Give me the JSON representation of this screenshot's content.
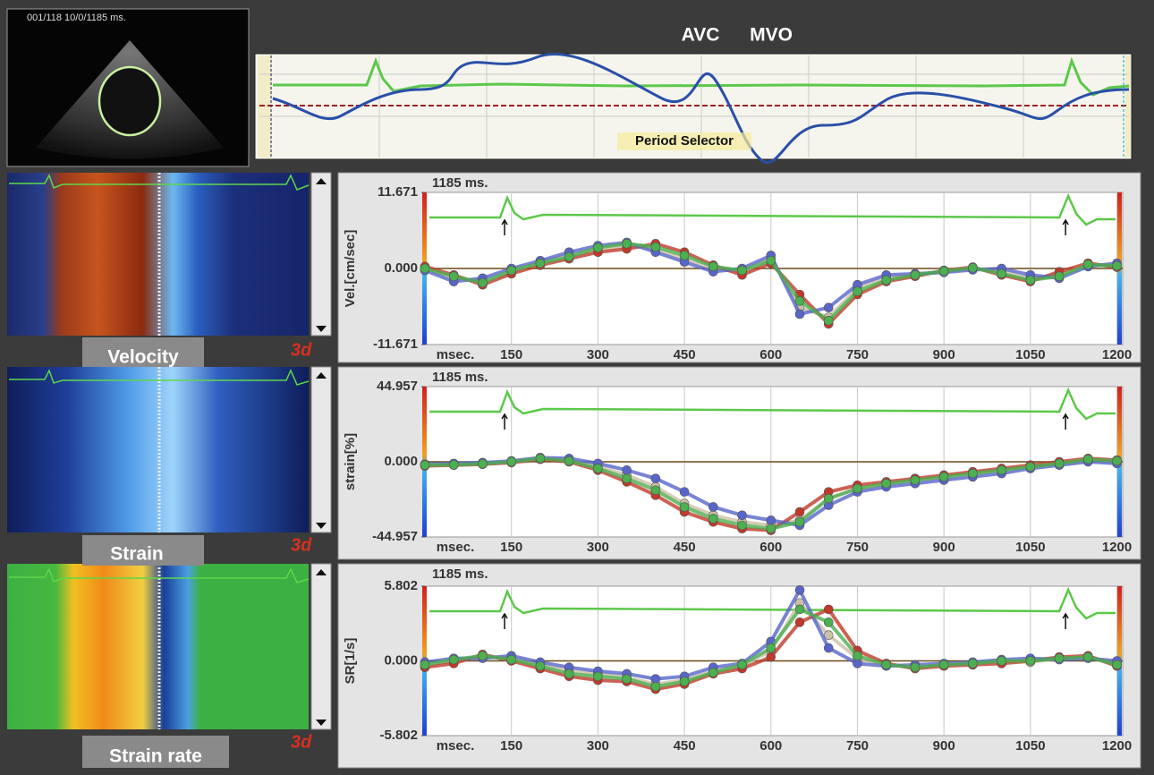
{
  "header": {
    "image_caption": "001/118  10/0/1185 ms.",
    "markers": [
      "AVC",
      "MVO"
    ],
    "selector_label": "Period Selector"
  },
  "brand": "3d",
  "chart_data": [
    {
      "type": "line",
      "label": "Velocity",
      "ylabel": "Vel.[cm/sec]",
      "time_label": "1185 ms.",
      "xlabel": "msec.",
      "x": [
        0,
        50,
        100,
        150,
        200,
        250,
        300,
        350,
        400,
        450,
        500,
        550,
        600,
        650,
        700,
        750,
        800,
        850,
        900,
        950,
        1000,
        1050,
        1100,
        1150,
        1200
      ],
      "xlim": [
        0,
        1210
      ],
      "xticks": [
        150,
        300,
        450,
        600,
        750,
        900,
        1050,
        1200
      ],
      "ylim": [
        -11.671,
        11.671
      ],
      "yticks": [
        -11.671,
        {
          "value": 0,
          "label": "0.000"
        },
        11.671
      ],
      "series": [
        {
          "color": "#c9c1a6",
          "values": [
            0,
            -1.5,
            -2,
            -0.5,
            1,
            2,
            3,
            3.5,
            3,
            1.5,
            0,
            -0.5,
            1.5,
            -6,
            -7.5,
            -3,
            -1.5,
            -1,
            -0.5,
            0,
            -0.5,
            -1.5,
            -1,
            0.5,
            0.5
          ]
        },
        {
          "color": "#c0392b",
          "values": [
            0.3,
            -1,
            -2.5,
            -0.8,
            0.5,
            1.5,
            2.5,
            3,
            3.8,
            2.5,
            0.5,
            -1,
            0.8,
            -4,
            -8.5,
            -4,
            -2,
            -1.2,
            -0.3,
            0.2,
            -1,
            -2,
            -0.5,
            0.8,
            0.2
          ]
        },
        {
          "color": "#5865c9",
          "values": [
            -0.3,
            -2,
            -1.5,
            0,
            1.2,
            2.5,
            3.5,
            4,
            2.5,
            1,
            -0.5,
            0,
            2,
            -7,
            -6,
            -2.5,
            -1,
            -0.8,
            -0.6,
            -0.2,
            0,
            -1,
            -1.5,
            0.3,
            0.8
          ]
        },
        {
          "color": "#4caf50",
          "values": [
            0,
            -1.2,
            -2.2,
            -0.3,
            0.8,
            1.8,
            3.2,
            3.8,
            3.3,
            2,
            0.3,
            -0.3,
            1.2,
            -5,
            -8,
            -3.5,
            -1.8,
            -1,
            -0.4,
            0.1,
            -0.8,
            -1.8,
            -1.2,
            0.6,
            0.4
          ]
        }
      ]
    },
    {
      "type": "line",
      "label": "Strain",
      "ylabel": "strain[%]",
      "time_label": "1185 ms.",
      "xlabel": "msec.",
      "x": [
        0,
        50,
        100,
        150,
        200,
        250,
        300,
        350,
        400,
        450,
        500,
        550,
        600,
        650,
        700,
        750,
        800,
        850,
        900,
        950,
        1000,
        1050,
        1100,
        1150,
        1200
      ],
      "xlim": [
        0,
        1210
      ],
      "xticks": [
        150,
        300,
        450,
        600,
        750,
        900,
        1050,
        1200
      ],
      "ylim": [
        -44.957,
        44.957
      ],
      "yticks": [
        -44.957,
        {
          "value": 0,
          "label": "0.000"
        },
        44.957
      ],
      "series": [
        {
          "color": "#c9c1a6",
          "values": [
            -2,
            -1.5,
            -1,
            0,
            2,
            1,
            -3,
            -8,
            -15,
            -25,
            -32,
            -36,
            -38,
            -35,
            -22,
            -16,
            -13,
            -11,
            -9,
            -7,
            -5,
            -3,
            -1,
            1,
            0
          ]
        },
        {
          "color": "#c0392b",
          "values": [
            -2.5,
            -2,
            -1.5,
            -0.5,
            1.5,
            0,
            -5,
            -12,
            -20,
            -30,
            -36,
            -40,
            -41,
            -30,
            -18,
            -14,
            -12,
            -10,
            -8,
            -6,
            -4,
            -2,
            0,
            2,
            1
          ]
        },
        {
          "color": "#5865c9",
          "values": [
            -1.5,
            -1,
            -0.5,
            0.5,
            2.5,
            2,
            -1,
            -5,
            -10,
            -18,
            -27,
            -32,
            -35,
            -38,
            -26,
            -18,
            -15,
            -13,
            -11,
            -9,
            -7,
            -4,
            -2,
            0,
            -1
          ]
        },
        {
          "color": "#4caf50",
          "values": [
            -2,
            -1.8,
            -1.2,
            0,
            2,
            0.5,
            -4,
            -10,
            -17,
            -27,
            -34,
            -38,
            -40,
            -36,
            -22,
            -16,
            -13,
            -11,
            -9,
            -7,
            -5,
            -3,
            -1,
            1.5,
            0.5
          ]
        }
      ]
    },
    {
      "type": "line",
      "label": "Strain rate",
      "ylabel": "SR[1/s]",
      "time_label": "1185 ms.",
      "xlabel": "msec.",
      "x": [
        0,
        50,
        100,
        150,
        200,
        250,
        300,
        350,
        400,
        450,
        500,
        550,
        600,
        650,
        700,
        750,
        800,
        850,
        900,
        950,
        1000,
        1050,
        1100,
        1150,
        1200
      ],
      "xlim": [
        0,
        1210
      ],
      "xticks": [
        150,
        300,
        450,
        600,
        750,
        900,
        1050,
        1200
      ],
      "ylim": [
        -5.802,
        5.802
      ],
      "yticks": [
        -5.802,
        {
          "value": 0,
          "label": "0.000"
        },
        5.802
      ],
      "series": [
        {
          "color": "#c9c1a6",
          "values": [
            -0.3,
            0,
            0.3,
            0.2,
            -0.3,
            -0.8,
            -1,
            -1.3,
            -1.8,
            -1.5,
            -0.8,
            -0.4,
            0.8,
            4.5,
            2,
            0.2,
            -0.3,
            -0.5,
            -0.3,
            -0.2,
            0,
            -0.1,
            0.2,
            0.3,
            -0.2
          ]
        },
        {
          "color": "#c0392b",
          "values": [
            -0.5,
            -0.2,
            0.5,
            0,
            -0.6,
            -1.2,
            -1.5,
            -1.6,
            -2.2,
            -1.8,
            -1,
            -0.6,
            0.3,
            3,
            4,
            0.8,
            -0.2,
            -0.6,
            -0.4,
            -0.3,
            -0.2,
            0,
            0.3,
            0.4,
            -0.4
          ]
        },
        {
          "color": "#5865c9",
          "values": [
            -0.1,
            0.2,
            0.2,
            0.4,
            -0.1,
            -0.5,
            -0.8,
            -1,
            -1.4,
            -1.2,
            -0.5,
            -0.2,
            1.5,
            5.5,
            1,
            -0.2,
            -0.4,
            -0.3,
            -0.2,
            -0.1,
            0.1,
            0.2,
            0.1,
            0.2,
            0
          ]
        },
        {
          "color": "#4caf50",
          "values": [
            -0.3,
            0.1,
            0.4,
            0.1,
            -0.4,
            -1,
            -1.2,
            -1.4,
            -2,
            -1.6,
            -0.9,
            -0.3,
            1,
            4,
            3,
            0.4,
            -0.3,
            -0.5,
            -0.3,
            -0.2,
            0,
            0,
            0.2,
            0.3,
            -0.3
          ]
        }
      ]
    }
  ]
}
